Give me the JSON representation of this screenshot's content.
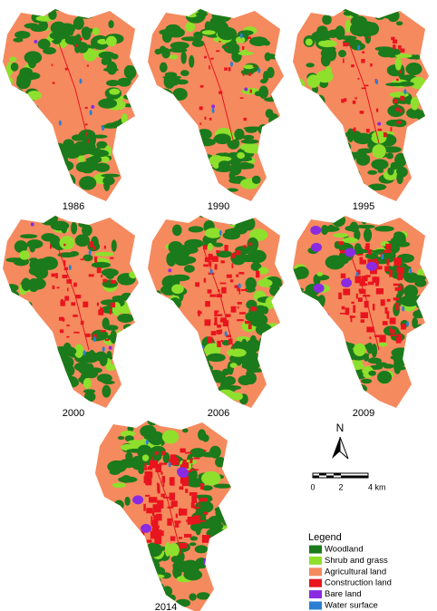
{
  "maps": [
    {
      "year": "1986"
    },
    {
      "year": "1990"
    },
    {
      "year": "1995"
    },
    {
      "year": "2000"
    },
    {
      "year": "2006"
    },
    {
      "year": "2009"
    },
    {
      "year": "2014"
    }
  ],
  "north": "N",
  "scale_bar": {
    "labels": [
      "0",
      "2",
      "4 km"
    ]
  },
  "legend": {
    "title": "Legend",
    "items": [
      {
        "label": "Woodland",
        "color": "#1b7a1b"
      },
      {
        "label": "Shrub and grass",
        "color": "#8ee02c"
      },
      {
        "label": "Agricultural land",
        "color": "#f58a5e"
      },
      {
        "label": "Construction land",
        "color": "#e8141e"
      },
      {
        "label": "Bare land",
        "color": "#8a2be2"
      },
      {
        "label": "Water surface",
        "color": "#2a7fd4"
      }
    ]
  }
}
